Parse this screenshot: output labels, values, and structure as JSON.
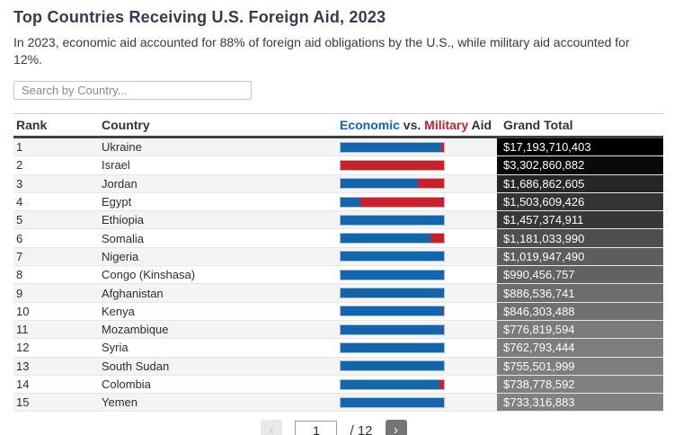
{
  "header": {
    "title": "Top Countries Receiving U.S. Foreign Aid, 2023",
    "subtitle": "In 2023, economic aid accounted for 88% of foreign aid obligations by the U.S., while military aid accounted for 12%."
  },
  "search": {
    "placeholder": "Search by Country..."
  },
  "table": {
    "columns": {
      "rank": "Rank",
      "country": "Country",
      "aid_mix_economic": "Economic",
      "aid_mix_vs": " vs. ",
      "aid_mix_military": "Military",
      "aid_mix_aid": " Aid",
      "grand_total": "Grand Total"
    },
    "colors": {
      "economic": "#1465a9",
      "military": "#c5222d"
    },
    "rows": [
      {
        "rank": "1",
        "country": "Ukraine",
        "economic_pct": 97,
        "military_pct": 3,
        "grand_total": "$17,193,710,403",
        "shade": "#000000"
      },
      {
        "rank": "2",
        "country": "Israel",
        "economic_pct": 0,
        "military_pct": 100,
        "grand_total": "$3,302,860,882",
        "shade": "#0a0a0a"
      },
      {
        "rank": "3",
        "country": "Jordan",
        "economic_pct": 74,
        "military_pct": 26,
        "grand_total": "$1,686,862,605",
        "shade": "#262626"
      },
      {
        "rank": "4",
        "country": "Egypt",
        "economic_pct": 20,
        "military_pct": 80,
        "grand_total": "$1,503,609,426",
        "shade": "#343434"
      },
      {
        "rank": "5",
        "country": "Ethiopia",
        "economic_pct": 100,
        "military_pct": 0,
        "grand_total": "$1,457,374,911",
        "shade": "#373737"
      },
      {
        "rank": "6",
        "country": "Somalia",
        "economic_pct": 86,
        "military_pct": 14,
        "grand_total": "$1,181,033,990",
        "shade": "#4e4e4e"
      },
      {
        "rank": "7",
        "country": "Nigeria",
        "economic_pct": 99,
        "military_pct": 1,
        "grand_total": "$1,019,947,490",
        "shade": "#5d5d5d"
      },
      {
        "rank": "8",
        "country": "Congo (Kinshasa)",
        "economic_pct": 99,
        "military_pct": 1,
        "grand_total": "$990,456,757",
        "shade": "#626262"
      },
      {
        "rank": "9",
        "country": "Afghanistan",
        "economic_pct": 100,
        "military_pct": 0,
        "grand_total": "$886,536,741",
        "shade": "#6d6d6d"
      },
      {
        "rank": "10",
        "country": "Kenya",
        "economic_pct": 98,
        "military_pct": 2,
        "grand_total": "$846,303,488",
        "shade": "#717171"
      },
      {
        "rank": "11",
        "country": "Mozambique",
        "economic_pct": 99,
        "military_pct": 1,
        "grand_total": "$776,819,594",
        "shade": "#7b7b7b"
      },
      {
        "rank": "12",
        "country": "Syria",
        "economic_pct": 100,
        "military_pct": 0,
        "grand_total": "$762,793,444",
        "shade": "#7d7d7d"
      },
      {
        "rank": "13",
        "country": "South Sudan",
        "economic_pct": 100,
        "military_pct": 0,
        "grand_total": "$755,501,999",
        "shade": "#7e7e7e"
      },
      {
        "rank": "14",
        "country": "Colombia",
        "economic_pct": 95,
        "military_pct": 5,
        "grand_total": "$738,778,592",
        "shade": "#808080"
      },
      {
        "rank": "15",
        "country": "Yemen",
        "economic_pct": 99,
        "military_pct": 1,
        "grand_total": "$733,316,883",
        "shade": "#818181"
      }
    ]
  },
  "pagination": {
    "prev_label": "‹",
    "page_value": "1",
    "total_pages_label": "/ 12",
    "next_label": "›"
  }
}
